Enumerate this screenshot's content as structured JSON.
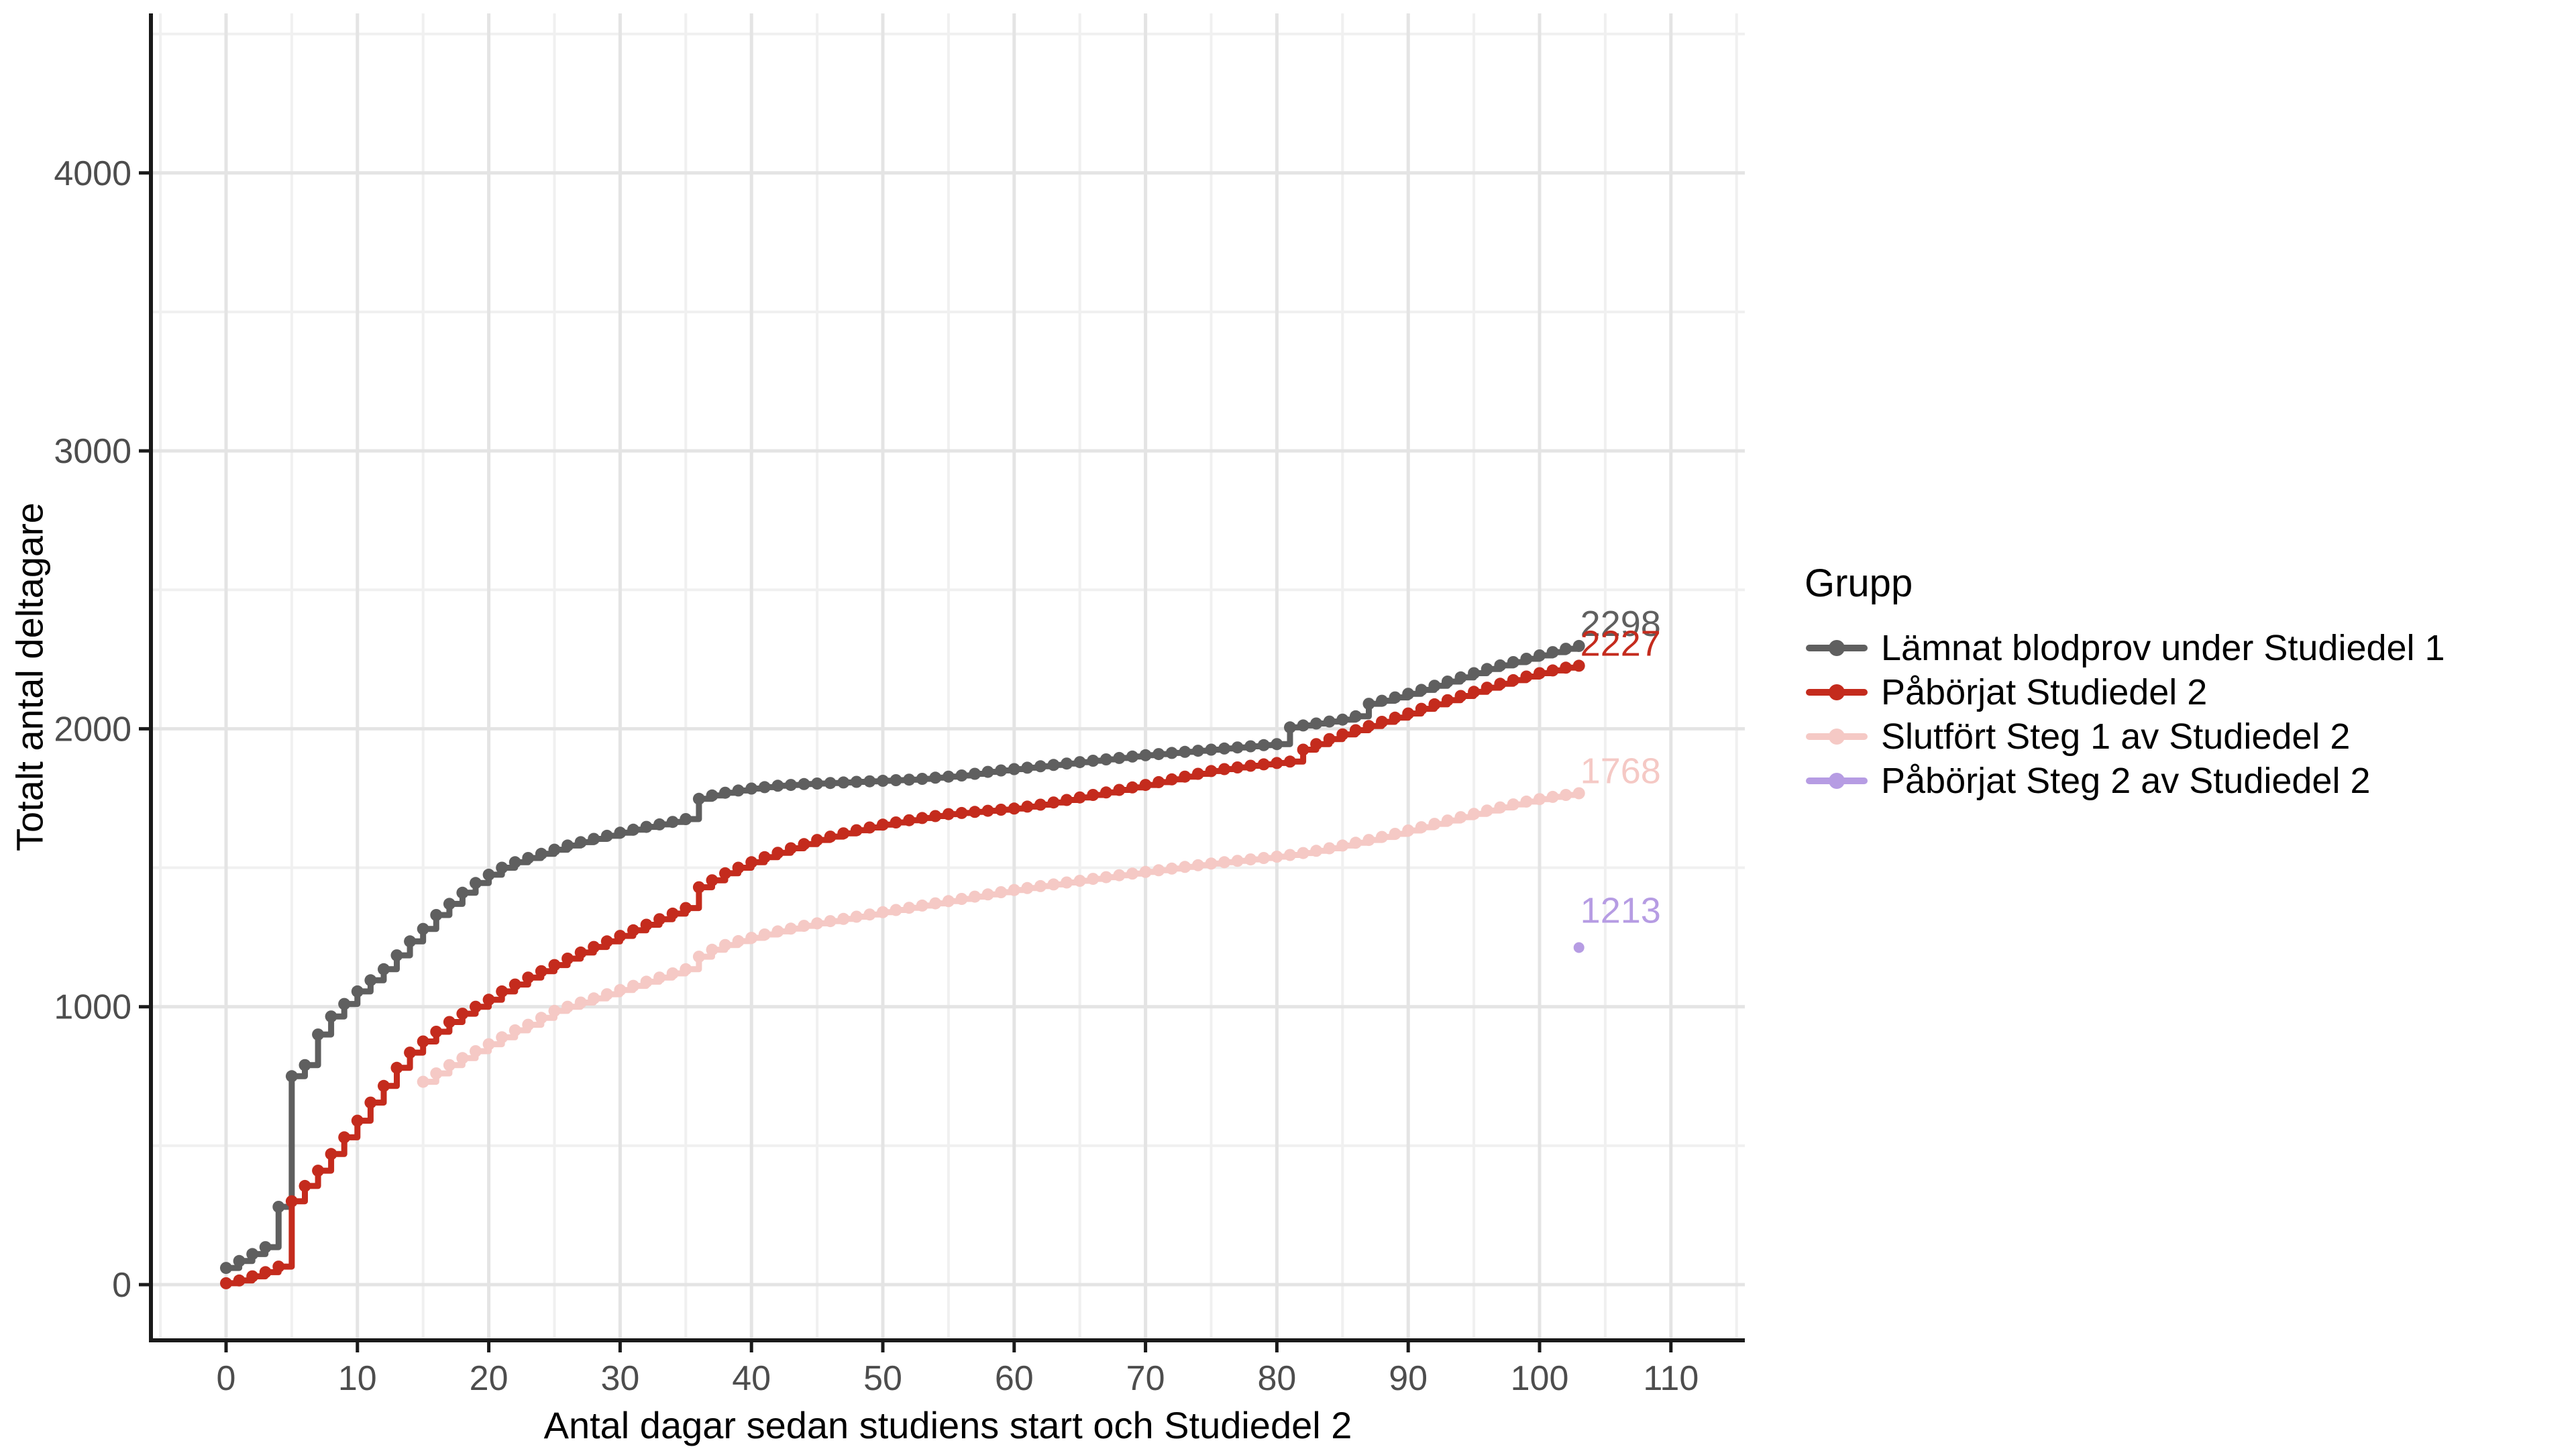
{
  "figure": {
    "background": "#ffffff"
  },
  "chart_data": {
    "type": "line",
    "line_style": "step-hv-with-points",
    "title": "",
    "xlabel": "Antal dagar sedan studiens start och Studiedel 2",
    "ylabel": "Totalt antal deltagare",
    "legend_title": "Grupp",
    "legend_position": "right",
    "grid": {
      "major": true,
      "minor": true
    },
    "x_ticks": [
      0,
      10,
      20,
      30,
      40,
      50,
      60,
      70,
      80,
      90,
      100,
      110
    ],
    "y_ticks": [
      0,
      1000,
      2000,
      3000,
      4000
    ],
    "xlim": [
      -5.7,
      115.6
    ],
    "ylim": [
      -195,
      4575
    ],
    "colors": {
      "axis_line": "#1a1a1a",
      "tick_label": "#4d4d4d",
      "grid_major": "#e4e4e4",
      "grid_minor": "#f0f0f0"
    },
    "series": [
      {
        "name": "Lämnat blodprov under Studiedel 1",
        "color": "#5f5f5f",
        "x_start": 0,
        "end_label": "2298",
        "values": [
          60,
          85,
          110,
          135,
          280,
          750,
          790,
          900,
          965,
          1010,
          1055,
          1095,
          1135,
          1185,
          1235,
          1280,
          1330,
          1370,
          1410,
          1445,
          1475,
          1500,
          1520,
          1535,
          1550,
          1565,
          1580,
          1592,
          1604,
          1615,
          1626,
          1637,
          1647,
          1656,
          1665,
          1675,
          1748,
          1760,
          1770,
          1778,
          1785,
          1790,
          1795,
          1798,
          1801,
          1803,
          1805,
          1807,
          1809,
          1811,
          1813,
          1815,
          1817,
          1820,
          1824,
          1828,
          1832,
          1838,
          1845,
          1850,
          1855,
          1860,
          1865,
          1870,
          1875,
          1880,
          1885,
          1890,
          1895,
          1900,
          1905,
          1909,
          1913,
          1917,
          1921,
          1925,
          1929,
          1933,
          1937,
          1941,
          1945,
          2005,
          2012,
          2019,
          2026,
          2033,
          2045,
          2090,
          2101,
          2113,
          2126,
          2140,
          2155,
          2170,
          2185,
          2200,
          2215,
          2228,
          2240,
          2252,
          2264,
          2276,
          2288,
          2298
        ]
      },
      {
        "name": "Påbörjat Studiedel 2",
        "color": "#c42b1d",
        "x_start": 0,
        "end_label": "2227",
        "values": [
          5,
          15,
          30,
          45,
          65,
          300,
          355,
          410,
          470,
          530,
          590,
          655,
          715,
          780,
          835,
          875,
          910,
          945,
          975,
          1000,
          1025,
          1055,
          1080,
          1105,
          1128,
          1150,
          1173,
          1195,
          1215,
          1235,
          1255,
          1275,
          1295,
          1315,
          1335,
          1355,
          1430,
          1455,
          1480,
          1500,
          1520,
          1538,
          1554,
          1570,
          1585,
          1600,
          1612,
          1624,
          1635,
          1645,
          1655,
          1663,
          1671,
          1679,
          1686,
          1693,
          1697,
          1701,
          1705,
          1709,
          1713,
          1720,
          1727,
          1735,
          1744,
          1753,
          1762,
          1771,
          1780,
          1789,
          1798,
          1808,
          1818,
          1828,
          1838,
          1848,
          1855,
          1861,
          1867,
          1872,
          1877,
          1882,
          1925,
          1945,
          1963,
          1980,
          1995,
          2010,
          2025,
          2040,
          2055,
          2072,
          2088,
          2103,
          2118,
          2133,
          2148,
          2162,
          2175,
          2188,
          2200,
          2210,
          2220,
          2227
        ]
      },
      {
        "name": "Slutfört Steg 1 av Studiedel 2",
        "color": "#f5c9c5",
        "x_start": 15,
        "end_label": "1768",
        "values": [
          730,
          760,
          790,
          815,
          840,
          865,
          890,
          915,
          935,
          960,
          985,
          1000,
          1015,
          1030,
          1045,
          1060,
          1075,
          1090,
          1105,
          1120,
          1135,
          1180,
          1205,
          1222,
          1236,
          1248,
          1260,
          1271,
          1281,
          1291,
          1300,
          1308,
          1316,
          1324,
          1332,
          1340,
          1348,
          1356,
          1364,
          1372,
          1380,
          1388,
          1396,
          1404,
          1412,
          1420,
          1427,
          1434,
          1440,
          1447,
          1453,
          1460,
          1466,
          1473,
          1479,
          1485,
          1491,
          1497,
          1503,
          1509,
          1515,
          1520,
          1525,
          1530,
          1535,
          1540,
          1546,
          1553,
          1561,
          1570,
          1580,
          1590,
          1600,
          1611,
          1622,
          1634,
          1646,
          1658,
          1670,
          1682,
          1694,
          1706,
          1717,
          1728,
          1738,
          1747,
          1755,
          1762,
          1768
        ]
      },
      {
        "name": "Påbörjat Steg 2 av Studiedel 2",
        "color": "#b69ce3",
        "x_start": 103,
        "end_label": "1213",
        "values": [
          1213
        ]
      }
    ]
  }
}
